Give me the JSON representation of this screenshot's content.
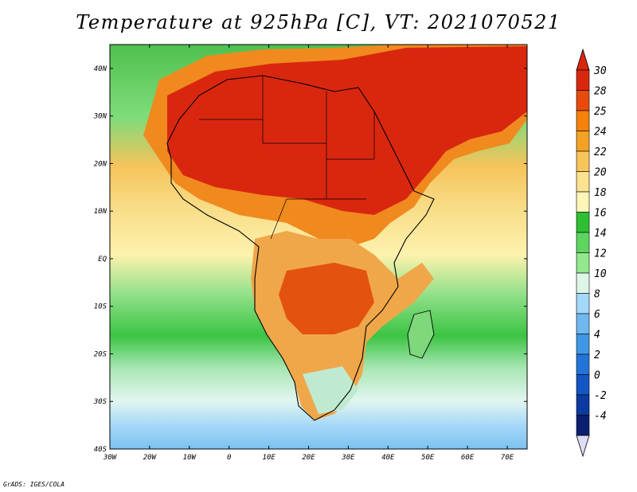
{
  "title": "Temperature at 925hPa [C], VT: 2021070521",
  "credit": "GrADS: IGES/COLA",
  "map": {
    "lon_range": [
      -30,
      75
    ],
    "lat_range": [
      -40,
      45
    ],
    "lon_ticks": [
      "30W",
      "20W",
      "10W",
      "0",
      "10E",
      "20E",
      "30E",
      "40E",
      "50E",
      "60E",
      "70E"
    ],
    "lat_ticks": [
      "40N",
      "30N",
      "20N",
      "10N",
      "EQ",
      "10S",
      "20S",
      "30S",
      "40S"
    ],
    "field": "Temperature at 925hPa",
    "units": "C",
    "valid_time": "2021070521"
  },
  "colorbar": {
    "labels": [
      "30",
      "28",
      "25",
      "24",
      "22",
      "20",
      "18",
      "16",
      "14",
      "12",
      "10",
      "8",
      "6",
      "4",
      "2",
      "0",
      "-2",
      "-4"
    ],
    "colors": [
      "#d9270f",
      "#e94a0b",
      "#f4820b",
      "#f5a224",
      "#f8c55a",
      "#fbe28f",
      "#fdf6b8",
      "#2fbf33",
      "#5dd55f",
      "#93e88e",
      "#ddf6e8",
      "#a5d8f8",
      "#6fb8f0",
      "#3f98e6",
      "#2274d8",
      "#1456c4",
      "#0c3aa0",
      "#0a1f70"
    ]
  }
}
